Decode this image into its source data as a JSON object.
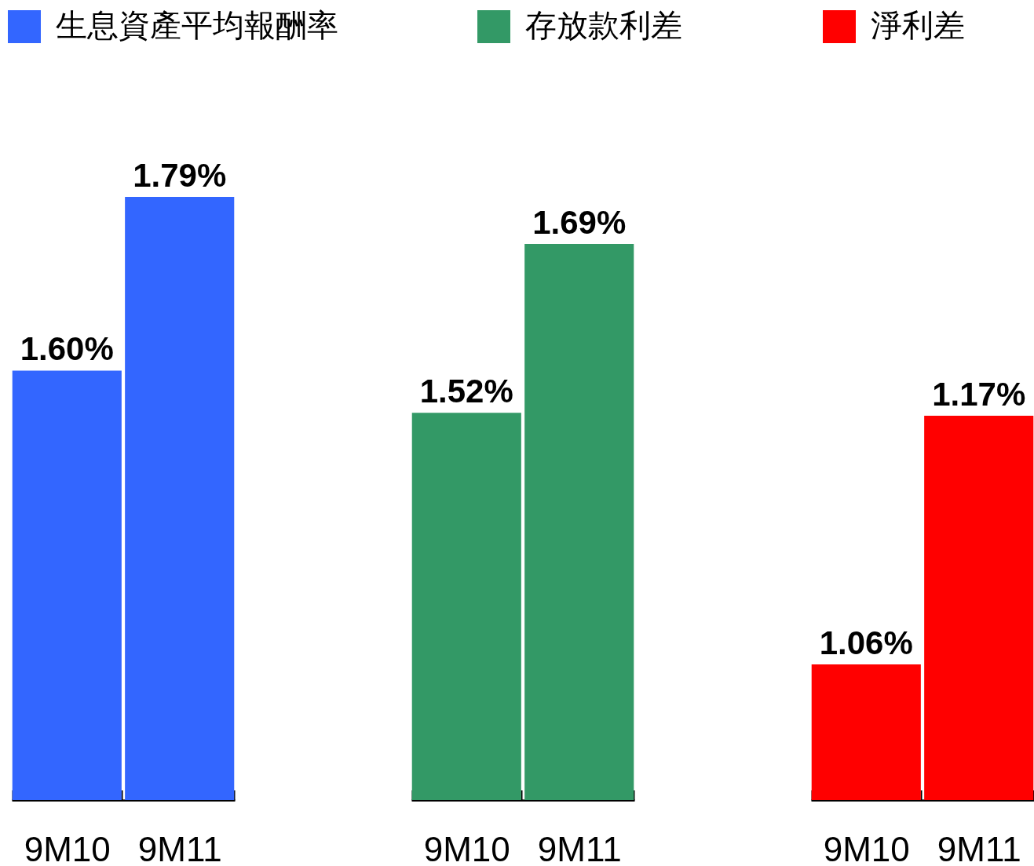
{
  "chart_data": [
    {
      "type": "bar",
      "categories": [
        "9M10",
        "9M11"
      ],
      "series": [
        {
          "name": "生息資產平均報酬率",
          "color": "#3366ff",
          "values": [
            1.6,
            1.79
          ],
          "value_labels": [
            "1.60%",
            "1.79%"
          ]
        }
      ],
      "ylim": [
        1.13,
        1.79
      ],
      "tick_labels": "x",
      "legend": "top"
    },
    {
      "type": "bar",
      "categories": [
        "9M10",
        "9M11"
      ],
      "series": [
        {
          "name": "存放款利差",
          "color": "#339966",
          "values": [
            1.52,
            1.69
          ],
          "value_labels": [
            "1.52%",
            "1.69%"
          ]
        }
      ],
      "ylim": [
        1.13,
        1.69
      ],
      "tick_labels": "x",
      "legend": "top"
    },
    {
      "type": "bar",
      "categories": [
        "9M10",
        "9M11"
      ],
      "series": [
        {
          "name": "淨利差",
          "color": "#ff0000",
          "values": [
            1.06,
            1.17
          ],
          "value_labels": [
            "1.06%",
            "1.17%"
          ]
        }
      ],
      "ylim": [
        1.0,
        1.17
      ],
      "tick_labels": "x",
      "legend": "top"
    }
  ]
}
